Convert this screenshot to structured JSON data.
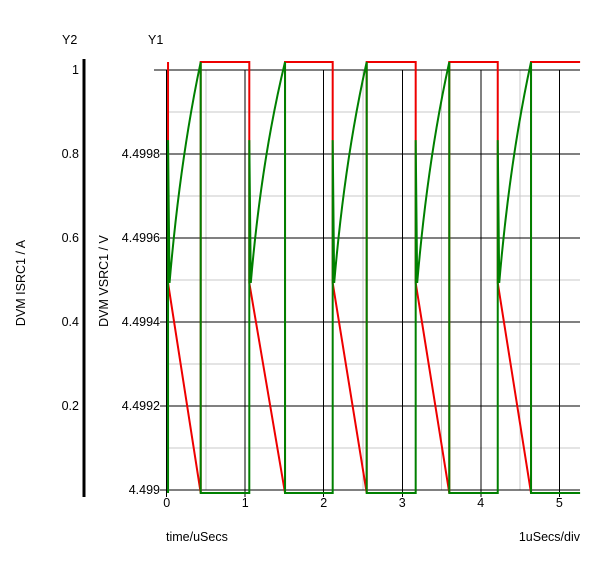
{
  "header": {
    "y2_title": "Y2",
    "y1_title": "Y1"
  },
  "axis_labels": {
    "y2": "DVM ISRC1 / A",
    "y1": "DVM VSRC1 / V",
    "x_bottom_left": "time/uSecs",
    "x_bottom_right": "1uSecs/div"
  },
  "chart_data": {
    "type": "line",
    "title": "",
    "grid": {
      "major_color": "#000000",
      "minor_color": "#c9c9c9"
    },
    "x_axis": {
      "label": "time/uSecs",
      "scale_note": "1uSecs/div",
      "major_ticks": [
        {
          "label": "0",
          "t": 0
        },
        {
          "label": "1",
          "t": 1
        },
        {
          "label": "2",
          "t": 2
        },
        {
          "label": "3",
          "t": 3
        },
        {
          "label": "4",
          "t": 4
        },
        {
          "label": "5",
          "t": 5
        }
      ],
      "minor_ticks": [
        0.5,
        1.5,
        2.5,
        3.5,
        4.5
      ],
      "t_end": 5.265
    },
    "y1_axis": {
      "label": "DVM VSRC1 / V",
      "tick_labels": [
        {
          "label": "4.4998",
          "v": 4.4998
        },
        {
          "label": "4.4996",
          "v": 4.4996
        },
        {
          "label": "4.4994",
          "v": 4.4994
        },
        {
          "label": "4.4992",
          "v": 4.4992
        },
        {
          "label": "4.499",
          "v": 4.499
        }
      ],
      "unlabeled_top_gridline_v": 4.5,
      "minor_gridline_v": [
        4.4999,
        4.4997,
        4.4995,
        4.4993,
        4.4991
      ],
      "range": [
        4.499,
        4.50002
      ]
    },
    "y2_axis": {
      "label": "DVM ISRC1 / A",
      "tick_labels": [
        {
          "label": "1",
          "v": 1.0
        },
        {
          "label": "0.8",
          "v": 0.8
        },
        {
          "label": "0.6",
          "v": 0.6
        },
        {
          "label": "0.4",
          "v": 0.4
        },
        {
          "label": "0.2",
          "v": 0.2
        }
      ],
      "range": [
        0,
        1.02
      ]
    },
    "series": [
      {
        "name": "DVM ISRC1 / A",
        "axis": "Y2",
        "color": "#ee0000",
        "shape": {
          "kind": "pulse-with-falling-ramp",
          "drop_times": [
            0.017,
            1.052,
            2.114,
            3.171,
            4.216
          ],
          "ramp_end_times": [
            0.433,
            1.507,
            2.547,
            3.599,
            4.64
          ],
          "high": 1.019,
          "drop_to": 0.493,
          "low": -0.007,
          "t_end": 5.265
        }
      },
      {
        "name": "DVM VSRC1 / V",
        "axis": "Y1",
        "color": "#008000",
        "shape": {
          "kind": "sawtooth-recovery",
          "step_times": [
            0.017,
            1.052,
            2.114,
            3.171,
            4.216
          ],
          "peak_times": [
            0.433,
            1.507,
            2.547,
            3.599,
            4.64
          ],
          "flat": 4.498993,
          "spike_top": 4.499833,
          "settle": 4.499493,
          "settle_dt": 0.019,
          "ramp_ctrl_dt": 0.153,
          "ramp_ctrl_v": 4.499786,
          "peak": 4.500019,
          "t_end": 5.265
        }
      }
    ]
  }
}
